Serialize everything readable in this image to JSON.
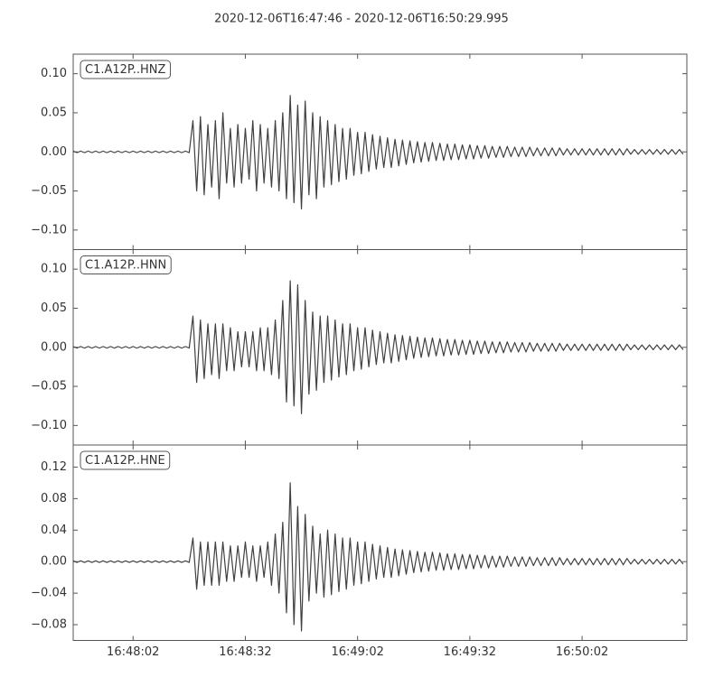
{
  "title": "2020-12-06T16:47:46  -  2020-12-06T16:50:29.995",
  "chart_data": [
    {
      "type": "line",
      "xlim": [
        0,
        163.995
      ],
      "ylim": [
        -0.125,
        0.125
      ],
      "yticks": [
        {
          "value": 0.1,
          "label": "0.10"
        },
        {
          "value": 0.05,
          "label": "0.05"
        },
        {
          "value": 0,
          "label": "0.00"
        },
        {
          "value": -0.05,
          "label": "−0.05"
        },
        {
          "value": -0.1,
          "label": "−0.10"
        }
      ],
      "x": [
        0,
        1,
        2,
        3,
        4,
        5,
        6,
        7,
        8,
        9,
        10,
        11,
        12,
        13,
        14,
        15,
        16,
        17,
        18,
        19,
        20,
        21,
        22,
        23,
        24,
        25,
        26,
        27,
        28,
        29,
        30,
        31,
        32,
        33,
        34,
        35,
        36,
        37,
        38,
        39,
        40,
        41,
        42,
        43,
        44,
        45,
        46,
        47,
        48,
        49,
        50,
        51,
        52,
        53,
        54,
        55,
        56,
        57,
        58,
        59,
        60,
        61,
        62,
        63,
        64,
        65,
        66,
        67,
        68,
        69,
        70,
        71,
        72,
        73,
        74,
        75,
        76,
        77,
        78,
        79,
        80,
        81,
        82,
        83,
        84,
        85,
        86,
        87,
        88,
        89,
        90,
        91,
        92,
        93,
        94,
        95,
        96,
        97,
        98,
        99,
        100,
        101,
        102,
        103,
        104,
        105,
        106,
        107,
        108,
        109,
        110,
        111,
        112,
        113,
        114,
        115,
        116,
        117,
        118,
        119,
        120,
        121,
        122,
        123,
        124,
        125,
        126,
        127,
        128,
        129,
        130,
        131,
        132,
        133,
        134,
        135,
        136,
        137,
        138,
        139,
        140,
        141,
        142,
        143,
        144,
        145,
        146,
        147,
        148,
        149,
        150,
        151,
        152,
        153,
        154,
        155,
        156,
        157,
        158,
        159,
        160,
        161,
        162,
        163
      ],
      "series": [
        {
          "name": "C1.A12P..HNZ",
          "color": "#404040",
          "values": [
            0.001,
            -0.001,
            0.001,
            -0.001,
            0.001,
            -0.001,
            0.001,
            -0.001,
            0.001,
            -0.001,
            0.001,
            -0.001,
            0.001,
            -0.001,
            0.001,
            -0.001,
            0.001,
            -0.001,
            0.001,
            -0.001,
            0.001,
            -0.001,
            0.001,
            -0.001,
            0.001,
            -0.001,
            0.001,
            -0.001,
            0.001,
            -0.001,
            0.001,
            -0.001,
            0.04,
            -0.05,
            0.045,
            -0.055,
            0.035,
            -0.045,
            0.04,
            -0.06,
            0.05,
            -0.04,
            0.03,
            -0.045,
            0.035,
            -0.04,
            0.03,
            -0.035,
            0.04,
            -0.05,
            0.035,
            -0.04,
            0.03,
            -0.045,
            0.04,
            -0.05,
            0.05,
            -0.06,
            0.072,
            -0.065,
            0.06,
            -0.073,
            0.065,
            -0.055,
            0.05,
            -0.06,
            0.045,
            -0.045,
            0.04,
            -0.042,
            0.035,
            -0.038,
            0.03,
            -0.035,
            0.03,
            -0.03,
            0.025,
            -0.028,
            0.025,
            -0.025,
            0.022,
            -0.022,
            0.02,
            -0.02,
            0.018,
            -0.02,
            0.016,
            -0.018,
            0.015,
            -0.016,
            0.014,
            -0.014,
            0.013,
            -0.013,
            0.012,
            -0.012,
            0.012,
            -0.011,
            0.011,
            -0.011,
            0.01,
            -0.01,
            0.01,
            -0.01,
            0.009,
            -0.009,
            0.009,
            -0.009,
            0.008,
            -0.008,
            0.008,
            -0.008,
            0.007,
            -0.007,
            0.007,
            -0.007,
            0.007,
            -0.006,
            0.006,
            -0.006,
            0.006,
            -0.006,
            0.006,
            -0.005,
            0.005,
            -0.005,
            0.005,
            -0.005,
            0.005,
            -0.005,
            0.005,
            -0.004,
            0.004,
            -0.004,
            0.004,
            -0.004,
            0.004,
            -0.004,
            0.004,
            -0.004,
            0.004,
            -0.004,
            0.004,
            -0.004,
            0.004,
            -0.004,
            0.004,
            -0.004,
            0.004,
            -0.003,
            0.003,
            -0.003,
            0.003,
            -0.003,
            0.003,
            -0.003,
            0.003,
            -0.003,
            0.003,
            -0.003,
            0.003,
            -0.003,
            0.003,
            -0.003
          ]
        }
      ]
    },
    {
      "type": "line",
      "xlim": [
        0,
        163.995
      ],
      "ylim": [
        -0.125,
        0.125
      ],
      "yticks": [
        {
          "value": 0.1,
          "label": "0.10"
        },
        {
          "value": 0.05,
          "label": "0.05"
        },
        {
          "value": 0,
          "label": "0.00"
        },
        {
          "value": -0.05,
          "label": "−0.05"
        },
        {
          "value": -0.1,
          "label": "−0.10"
        }
      ],
      "x": [
        0,
        1,
        2,
        3,
        4,
        5,
        6,
        7,
        8,
        9,
        10,
        11,
        12,
        13,
        14,
        15,
        16,
        17,
        18,
        19,
        20,
        21,
        22,
        23,
        24,
        25,
        26,
        27,
        28,
        29,
        30,
        31,
        32,
        33,
        34,
        35,
        36,
        37,
        38,
        39,
        40,
        41,
        42,
        43,
        44,
        45,
        46,
        47,
        48,
        49,
        50,
        51,
        52,
        53,
        54,
        55,
        56,
        57,
        58,
        59,
        60,
        61,
        62,
        63,
        64,
        65,
        66,
        67,
        68,
        69,
        70,
        71,
        72,
        73,
        74,
        75,
        76,
        77,
        78,
        79,
        80,
        81,
        82,
        83,
        84,
        85,
        86,
        87,
        88,
        89,
        90,
        91,
        92,
        93,
        94,
        95,
        96,
        97,
        98,
        99,
        100,
        101,
        102,
        103,
        104,
        105,
        106,
        107,
        108,
        109,
        110,
        111,
        112,
        113,
        114,
        115,
        116,
        117,
        118,
        119,
        120,
        121,
        122,
        123,
        124,
        125,
        126,
        127,
        128,
        129,
        130,
        131,
        132,
        133,
        134,
        135,
        136,
        137,
        138,
        139,
        140,
        141,
        142,
        143,
        144,
        145,
        146,
        147,
        148,
        149,
        150,
        151,
        152,
        153,
        154,
        155,
        156,
        157,
        158,
        159,
        160,
        161,
        162,
        163
      ],
      "series": [
        {
          "name": "C1.A12P..HNN",
          "color": "#404040",
          "values": [
            0.001,
            -0.001,
            0.001,
            -0.001,
            0.001,
            -0.001,
            0.001,
            -0.001,
            0.001,
            -0.001,
            0.001,
            -0.001,
            0.001,
            -0.001,
            0.001,
            -0.001,
            0.001,
            -0.001,
            0.001,
            -0.001,
            0.001,
            -0.001,
            0.001,
            -0.001,
            0.001,
            -0.001,
            0.001,
            -0.001,
            0.001,
            -0.001,
            0.001,
            -0.001,
            0.04,
            -0.045,
            0.035,
            -0.04,
            0.03,
            -0.035,
            0.03,
            -0.04,
            0.03,
            -0.03,
            0.025,
            -0.03,
            0.02,
            -0.025,
            0.02,
            -0.025,
            0.02,
            -0.03,
            0.025,
            -0.03,
            0.025,
            -0.035,
            0.035,
            -0.04,
            0.06,
            -0.07,
            0.085,
            -0.075,
            0.08,
            -0.085,
            0.06,
            -0.06,
            0.045,
            -0.055,
            0.04,
            -0.045,
            0.04,
            -0.042,
            0.035,
            -0.038,
            0.03,
            -0.035,
            0.03,
            -0.03,
            0.025,
            -0.028,
            0.025,
            -0.025,
            0.022,
            -0.022,
            0.02,
            -0.02,
            0.018,
            -0.02,
            0.016,
            -0.018,
            0.015,
            -0.016,
            0.014,
            -0.014,
            0.013,
            -0.013,
            0.012,
            -0.012,
            0.012,
            -0.011,
            0.011,
            -0.011,
            0.01,
            -0.01,
            0.01,
            -0.01,
            0.009,
            -0.009,
            0.009,
            -0.009,
            0.008,
            -0.008,
            0.008,
            -0.008,
            0.007,
            -0.007,
            0.007,
            -0.007,
            0.007,
            -0.006,
            0.006,
            -0.006,
            0.006,
            -0.006,
            0.006,
            -0.005,
            0.005,
            -0.005,
            0.005,
            -0.005,
            0.005,
            -0.005,
            0.005,
            -0.004,
            0.004,
            -0.004,
            0.004,
            -0.004,
            0.004,
            -0.004,
            0.004,
            -0.004,
            0.004,
            -0.004,
            0.004,
            -0.004,
            0.004,
            -0.004,
            0.004,
            -0.004,
            0.004,
            -0.003,
            0.003,
            -0.003,
            0.003,
            -0.003,
            0.003,
            -0.003,
            0.003,
            -0.003,
            0.003,
            -0.003,
            0.003,
            -0.003,
            0.003,
            -0.003
          ]
        }
      ]
    },
    {
      "type": "line",
      "xlim": [
        0,
        163.995
      ],
      "ylim": [
        -0.1,
        0.148
      ],
      "xticks": [
        {
          "value": 16,
          "label": "16:48:02"
        },
        {
          "value": 46,
          "label": "16:48:32"
        },
        {
          "value": 76,
          "label": "16:49:02"
        },
        {
          "value": 106,
          "label": "16:49:32"
        },
        {
          "value": 136,
          "label": "16:50:02"
        }
      ],
      "yticks": [
        {
          "value": 0.12,
          "label": "0.12"
        },
        {
          "value": 0.08,
          "label": "0.08"
        },
        {
          "value": 0.04,
          "label": "0.04"
        },
        {
          "value": 0,
          "label": "0.00"
        },
        {
          "value": -0.04,
          "label": "−0.04"
        },
        {
          "value": -0.08,
          "label": "−0.08"
        }
      ],
      "x": [
        0,
        1,
        2,
        3,
        4,
        5,
        6,
        7,
        8,
        9,
        10,
        11,
        12,
        13,
        14,
        15,
        16,
        17,
        18,
        19,
        20,
        21,
        22,
        23,
        24,
        25,
        26,
        27,
        28,
        29,
        30,
        31,
        32,
        33,
        34,
        35,
        36,
        37,
        38,
        39,
        40,
        41,
        42,
        43,
        44,
        45,
        46,
        47,
        48,
        49,
        50,
        51,
        52,
        53,
        54,
        55,
        56,
        57,
        58,
        59,
        60,
        61,
        62,
        63,
        64,
        65,
        66,
        67,
        68,
        69,
        70,
        71,
        72,
        73,
        74,
        75,
        76,
        77,
        78,
        79,
        80,
        81,
        82,
        83,
        84,
        85,
        86,
        87,
        88,
        89,
        90,
        91,
        92,
        93,
        94,
        95,
        96,
        97,
        98,
        99,
        100,
        101,
        102,
        103,
        104,
        105,
        106,
        107,
        108,
        109,
        110,
        111,
        112,
        113,
        114,
        115,
        116,
        117,
        118,
        119,
        120,
        121,
        122,
        123,
        124,
        125,
        126,
        127,
        128,
        129,
        130,
        131,
        132,
        133,
        134,
        135,
        136,
        137,
        138,
        139,
        140,
        141,
        142,
        143,
        144,
        145,
        146,
        147,
        148,
        149,
        150,
        151,
        152,
        153,
        154,
        155,
        156,
        157,
        158,
        159,
        160,
        161,
        162,
        163
      ],
      "series": [
        {
          "name": "C1.A12P..HNE",
          "color": "#404040",
          "values": [
            0.001,
            -0.001,
            0.001,
            -0.001,
            0.001,
            -0.001,
            0.001,
            -0.001,
            0.001,
            -0.001,
            0.001,
            -0.001,
            0.001,
            -0.001,
            0.001,
            -0.001,
            0.001,
            -0.001,
            0.001,
            -0.001,
            0.001,
            -0.001,
            0.001,
            -0.001,
            0.001,
            -0.001,
            0.001,
            -0.001,
            0.001,
            -0.001,
            0.001,
            -0.001,
            0.03,
            -0.035,
            0.025,
            -0.03,
            0.025,
            -0.03,
            0.025,
            -0.03,
            0.025,
            -0.025,
            0.02,
            -0.025,
            0.02,
            -0.02,
            0.025,
            -0.02,
            0.02,
            -0.025,
            0.02,
            -0.02,
            0.025,
            -0.03,
            0.035,
            -0.04,
            0.05,
            -0.065,
            0.1,
            -0.08,
            0.07,
            -0.088,
            0.06,
            -0.05,
            0.045,
            -0.04,
            0.035,
            -0.045,
            0.04,
            -0.042,
            0.035,
            -0.038,
            0.03,
            -0.035,
            0.03,
            -0.03,
            0.025,
            -0.028,
            0.025,
            -0.025,
            0.022,
            -0.022,
            0.02,
            -0.02,
            0.018,
            -0.02,
            0.016,
            -0.018,
            0.015,
            -0.016,
            0.014,
            -0.014,
            0.013,
            -0.013,
            0.012,
            -0.012,
            0.012,
            -0.011,
            0.011,
            -0.011,
            0.01,
            -0.01,
            0.01,
            -0.01,
            0.009,
            -0.009,
            0.009,
            -0.009,
            0.008,
            -0.008,
            0.008,
            -0.008,
            0.007,
            -0.007,
            0.007,
            -0.007,
            0.007,
            -0.006,
            0.006,
            -0.006,
            0.006,
            -0.006,
            0.006,
            -0.005,
            0.005,
            -0.005,
            0.005,
            -0.005,
            0.005,
            -0.005,
            0.005,
            -0.004,
            0.004,
            -0.004,
            0.004,
            -0.004,
            0.004,
            -0.004,
            0.004,
            -0.004,
            0.004,
            -0.004,
            0.004,
            -0.004,
            0.004,
            -0.004,
            0.004,
            -0.004,
            0.004,
            -0.003,
            0.003,
            -0.003,
            0.003,
            -0.003,
            0.003,
            -0.003,
            0.003,
            -0.003,
            0.003,
            -0.003,
            0.003,
            -0.003,
            0.003,
            -0.003
          ]
        }
      ]
    }
  ]
}
